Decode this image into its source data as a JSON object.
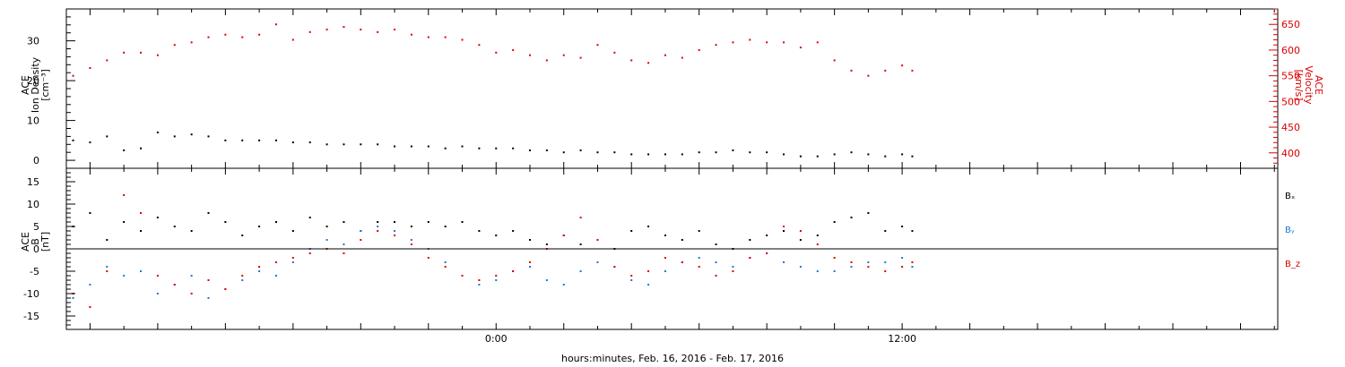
{
  "figure": {
    "xlabel": "hours:minutes, Feb. 16, 2016 - Feb. 17, 2016",
    "x_tick_labels": [
      "0:00",
      "12:00"
    ]
  },
  "chart_data": [
    {
      "type": "scatter",
      "panel": "top",
      "ylabel_left": [
        "ACE",
        "Ion Density",
        "[cm⁻³]"
      ],
      "ylabel_right": [
        "ACE",
        "Velocity",
        "[km/s]"
      ],
      "xlim_hours": [
        -12.7,
        23.1
      ],
      "x_ticks_hours": [
        0,
        12
      ],
      "ylim_left": [
        -2,
        38
      ],
      "y_ticks_left": [
        0,
        10,
        20,
        30
      ],
      "ylim_right": [
        370,
        680
      ],
      "y_ticks_right": [
        400,
        450,
        500,
        550,
        600,
        650
      ],
      "series": [
        {
          "axis": "left",
          "color": "#000000",
          "x": [
            -12.5,
            -12,
            -11.5,
            -11,
            -10.5,
            -10,
            -9.5,
            -9,
            -8.5,
            -8,
            -7.5,
            -7,
            -6.5,
            -6,
            -5.5,
            -5,
            -4.5,
            -4,
            -3.5,
            -3,
            -2.5,
            -2,
            -1.5,
            -1,
            -0.5,
            0,
            0.5,
            1,
            1.5,
            2,
            2.5,
            3,
            3.5,
            4,
            4.5,
            5,
            5.5,
            6,
            6.5,
            7,
            7.5,
            8,
            8.5,
            9,
            9.5,
            10,
            10.5,
            11,
            11.5,
            12,
            12.3
          ],
          "y": [
            5,
            4.5,
            6,
            2.5,
            3,
            7,
            6,
            6.5,
            6,
            5,
            5,
            5,
            5,
            4.5,
            4.5,
            4,
            4,
            4,
            4,
            3.5,
            3.5,
            3.5,
            3,
            3.5,
            3,
            3,
            3,
            2.5,
            2.5,
            2,
            2.5,
            2,
            2,
            1.5,
            1.5,
            1.5,
            1.5,
            2,
            2,
            2.5,
            2,
            2,
            1.5,
            1,
            1,
            1.5,
            2,
            1.5,
            1,
            1.5,
            1
          ]
        },
        {
          "axis": "right",
          "color": "#dd0000",
          "x": [
            -12.5,
            -12,
            -11.5,
            -11,
            -10.5,
            -10,
            -9.5,
            -9,
            -8.5,
            -8,
            -7.5,
            -7,
            -6.5,
            -6,
            -5.5,
            -5,
            -4.5,
            -4,
            -3.5,
            -3,
            -2.5,
            -2,
            -1.5,
            -1,
            -0.5,
            0,
            0.5,
            1,
            1.5,
            2,
            2.5,
            3,
            3.5,
            4,
            4.5,
            5,
            5.5,
            6,
            6.5,
            7,
            7.5,
            8,
            8.5,
            9,
            9.5,
            10,
            10.5,
            11,
            11.5,
            12,
            12.3
          ],
          "y": [
            550,
            565,
            580,
            595,
            595,
            590,
            610,
            615,
            625,
            630,
            625,
            630,
            650,
            620,
            635,
            640,
            645,
            640,
            635,
            640,
            630,
            625,
            625,
            620,
            610,
            595,
            600,
            590,
            580,
            590,
            585,
            610,
            595,
            580,
            575,
            590,
            585,
            600,
            610,
            615,
            620,
            615,
            615,
            605,
            615,
            580,
            560,
            550,
            560,
            570,
            560
          ]
        }
      ]
    },
    {
      "type": "scatter",
      "panel": "bottom",
      "ylabel_left": [
        "ACE",
        "B",
        "[nT]"
      ],
      "xlim_hours": [
        -12.7,
        23.1
      ],
      "x_ticks_hours": [
        0,
        12
      ],
      "ylim": [
        -18,
        18
      ],
      "y_ticks": [
        -15,
        -10,
        -5,
        0,
        5,
        10,
        15
      ],
      "zero_line": true,
      "series": [
        {
          "name": "Bₓ",
          "color": "#000000",
          "x": [
            -12.5,
            -12,
            -11.5,
            -11,
            -10.5,
            -10,
            -9.5,
            -9,
            -8.5,
            -8,
            -7.5,
            -7,
            -6.5,
            -6,
            -5.5,
            -5,
            -4.5,
            -4,
            -3.5,
            -3,
            -2.5,
            -2,
            -1.5,
            -1,
            -0.5,
            0,
            0.5,
            1,
            1.5,
            2,
            2.5,
            3,
            3.5,
            4,
            4.5,
            5,
            5.5,
            6,
            6.5,
            7,
            7.5,
            8,
            8.5,
            9,
            9.5,
            10,
            10.5,
            11,
            11.5,
            12,
            12.3
          ],
          "y": [
            5,
            8,
            2,
            6,
            4,
            7,
            5,
            4,
            8,
            6,
            3,
            5,
            6,
            4,
            7,
            5,
            6,
            4,
            6,
            6,
            5,
            6,
            5,
            6,
            4,
            3,
            4,
            2,
            1,
            3,
            1,
            2,
            0,
            4,
            5,
            3,
            2,
            4,
            1,
            0,
            2,
            3,
            4,
            2,
            3,
            6,
            7,
            8,
            4,
            5,
            4
          ]
        },
        {
          "name": "Bᵧ",
          "color": "#1f77d8",
          "x": [
            -12.5,
            -12,
            -11.5,
            -11,
            -10.5,
            -10,
            -9.5,
            -9,
            -8.5,
            -8,
            -7.5,
            -7,
            -6.5,
            -6,
            -5.5,
            -5,
            -4.5,
            -4,
            -3.5,
            -3,
            -2.5,
            -2,
            -1.5,
            -1,
            -0.5,
            0,
            0.5,
            1,
            1.5,
            2,
            2.5,
            3,
            3.5,
            4,
            4.5,
            5,
            5.5,
            6,
            6.5,
            7,
            7.5,
            8,
            8.5,
            9,
            9.5,
            10,
            10.5,
            11,
            11.5,
            12,
            12.3
          ],
          "y": [
            -11,
            -8,
            -4,
            -6,
            -5,
            -10,
            -8,
            -6,
            -11,
            -9,
            -7,
            -5,
            -6,
            -3,
            0,
            2,
            1,
            4,
            5,
            4,
            2,
            0,
            -3,
            -6,
            -8,
            -7,
            -5,
            -4,
            -7,
            -8,
            -5,
            -3,
            -4,
            -7,
            -8,
            -5,
            -3,
            -2,
            -3,
            -4,
            -2,
            -1,
            -3,
            -4,
            -5,
            -5,
            -4,
            -3,
            -3,
            -2,
            -4
          ]
        },
        {
          "name": "B_z",
          "color": "#dd0000",
          "x": [
            -12.5,
            -12,
            -11.5,
            -11,
            -10.5,
            -10,
            -9.5,
            -9,
            -8.5,
            -8,
            -7.5,
            -7,
            -6.5,
            -6,
            -5.5,
            -5,
            -4.5,
            -4,
            -3.5,
            -3,
            -2.5,
            -2,
            -1.5,
            -1,
            -0.5,
            0,
            0.5,
            1,
            1.5,
            2,
            2.5,
            3,
            3.5,
            4,
            4.5,
            5,
            5.5,
            6,
            6.5,
            7,
            7.5,
            8,
            8.5,
            9,
            9.5,
            10,
            10.5,
            11,
            11.5,
            12,
            12.3
          ],
          "y": [
            -10,
            -13,
            -5,
            12,
            8,
            -6,
            -8,
            -10,
            -7,
            -9,
            -6,
            -4,
            -3,
            -2,
            -1,
            0,
            -1,
            2,
            4,
            3,
            1,
            -2,
            -4,
            -6,
            -7,
            -6,
            -5,
            -3,
            0,
            3,
            7,
            2,
            -4,
            -6,
            -5,
            -2,
            -3,
            -4,
            -6,
            -5,
            -2,
            -1,
            5,
            4,
            1,
            -2,
            -3,
            -4,
            -5,
            -4,
            -3
          ]
        }
      ]
    }
  ]
}
